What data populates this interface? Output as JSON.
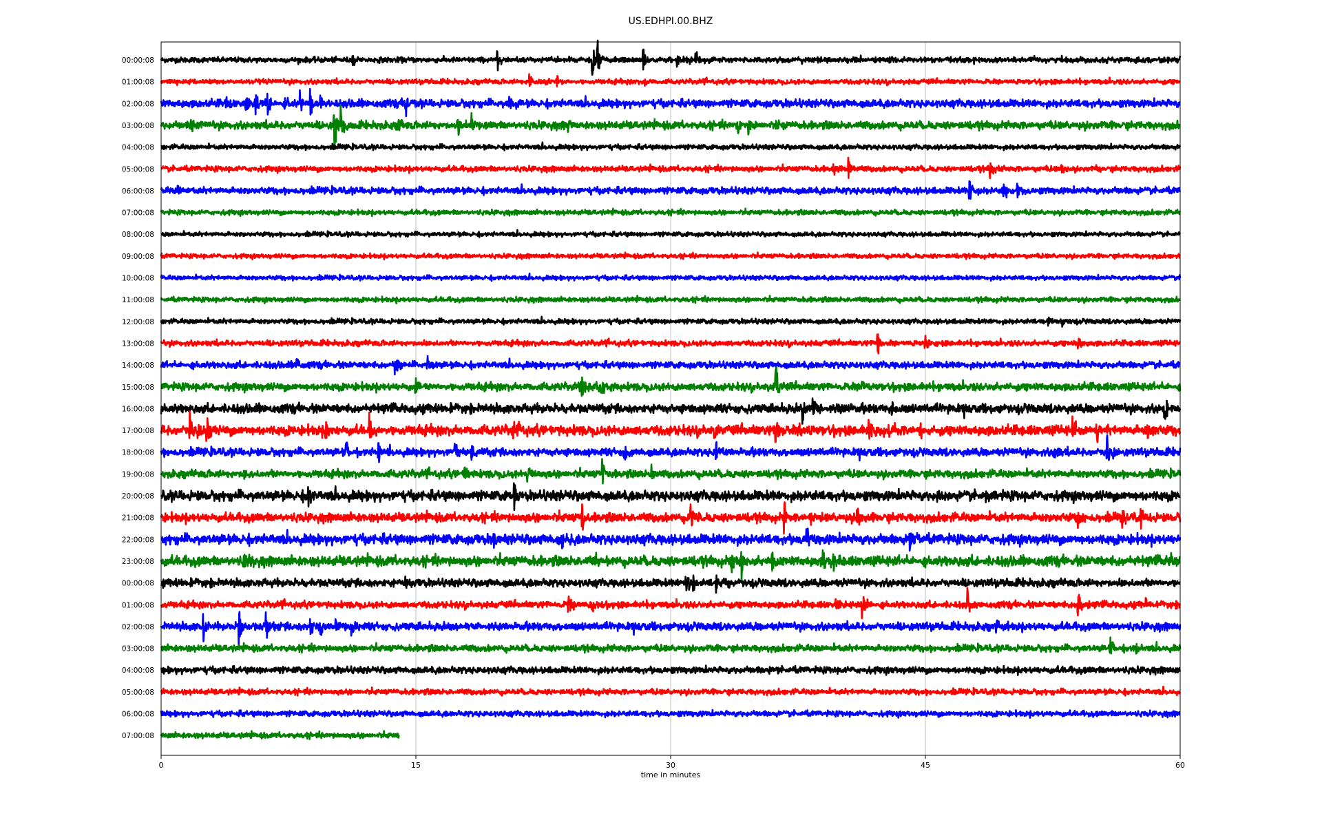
{
  "chart_data": {
    "type": "line",
    "title": "US.EDHPI.00.BHZ",
    "xlabel": "time in minutes",
    "ylabel": "",
    "xlim": [
      0,
      60
    ],
    "xticks": [
      0,
      15,
      30,
      45,
      60
    ],
    "grid": "vertical",
    "colors": [
      "#000000",
      "#ff0000",
      "#0000ff",
      "#008000"
    ],
    "row_labels": [
      "00:00:08",
      "01:00:08",
      "02:00:08",
      "03:00:08",
      "04:00:08",
      "05:00:08",
      "06:00:08",
      "07:00:08",
      "08:00:08",
      "09:00:08",
      "10:00:08",
      "11:00:08",
      "12:00:08",
      "13:00:08",
      "14:00:08",
      "15:00:08",
      "16:00:08",
      "17:00:08",
      "18:00:08",
      "19:00:08",
      "20:00:08",
      "21:00:08",
      "22:00:08",
      "23:00:08",
      "00:00:08",
      "01:00:08",
      "02:00:08",
      "03:00:08",
      "04:00:08",
      "05:00:08",
      "06:00:08",
      "07:00:08"
    ],
    "row_end_minutes": [
      60,
      60,
      60,
      60,
      60,
      60,
      60,
      60,
      60,
      60,
      60,
      60,
      60,
      60,
      60,
      60,
      60,
      60,
      60,
      60,
      60,
      60,
      60,
      60,
      60,
      60,
      60,
      60,
      60,
      60,
      60,
      14
    ],
    "noise_level": [
      0.25,
      0.22,
      0.35,
      0.35,
      0.22,
      0.25,
      0.3,
      0.22,
      0.2,
      0.2,
      0.2,
      0.22,
      0.22,
      0.25,
      0.3,
      0.35,
      0.4,
      0.45,
      0.35,
      0.35,
      0.45,
      0.4,
      0.45,
      0.45,
      0.35,
      0.3,
      0.35,
      0.3,
      0.3,
      0.25,
      0.25,
      0.25
    ],
    "events": [
      [
        [
          11.3,
          0.5
        ],
        [
          19.8,
          0.6
        ],
        [
          25.4,
          1.0
        ],
        [
          25.7,
          1.4
        ],
        [
          28.4,
          0.6
        ],
        [
          30.4,
          0.6
        ],
        [
          31.5,
          0.6
        ]
      ],
      [
        [
          21.7,
          0.5
        ],
        [
          22.6,
          0.5
        ],
        [
          23.3,
          0.4
        ],
        [
          28.5,
          0.3
        ]
      ],
      [
        [
          3.8,
          0.5
        ],
        [
          5.0,
          0.6
        ],
        [
          5.6,
          0.7
        ],
        [
          6.3,
          0.6
        ],
        [
          7.3,
          0.5
        ],
        [
          8.2,
          0.8
        ],
        [
          8.8,
          0.7
        ],
        [
          9.4,
          0.7
        ],
        [
          14.4,
          0.6
        ],
        [
          20.5,
          0.8
        ]
      ],
      [
        [
          1.8,
          0.7
        ],
        [
          10.2,
          1.6
        ],
        [
          10.6,
          1.0
        ],
        [
          14.0,
          0.7
        ],
        [
          17.5,
          0.6
        ],
        [
          18.3,
          0.6
        ],
        [
          24.0,
          0.4
        ],
        [
          34.0,
          0.6
        ],
        [
          34.6,
          0.5
        ],
        [
          36.2,
          0.4
        ]
      ],
      [],
      [
        [
          39.6,
          0.4
        ],
        [
          40.5,
          0.6
        ],
        [
          48.8,
          0.6
        ],
        [
          53.0,
          0.4
        ],
        [
          55.0,
          0.3
        ]
      ],
      [
        [
          1.0,
          0.3
        ],
        [
          47.6,
          0.6
        ],
        [
          49.6,
          0.5
        ],
        [
          50.4,
          0.4
        ]
      ],
      [],
      [],
      [],
      [],
      [],
      [
        [
          52.2,
          0.4
        ],
        [
          53.0,
          0.3
        ]
      ],
      [
        [
          42.2,
          0.7
        ],
        [
          45.0,
          0.5
        ],
        [
          54.0,
          0.5
        ]
      ],
      [
        [
          8.0,
          0.4
        ],
        [
          13.8,
          0.7
        ],
        [
          15.7,
          0.5
        ]
      ],
      [
        [
          15.0,
          0.5
        ],
        [
          24.8,
          0.6
        ],
        [
          25.9,
          0.7
        ],
        [
          36.2,
          1.5
        ],
        [
          41.3,
          0.3
        ]
      ],
      [
        [
          37.8,
          0.7
        ],
        [
          38.4,
          0.7
        ],
        [
          39.9,
          0.4
        ],
        [
          43.0,
          0.6
        ],
        [
          59.1,
          0.9
        ]
      ],
      [
        [
          1.7,
          0.9
        ],
        [
          2.7,
          1.0
        ],
        [
          9.7,
          0.6
        ],
        [
          12.3,
          0.8
        ],
        [
          20.7,
          0.4
        ],
        [
          32.6,
          0.5
        ],
        [
          36.2,
          1.2
        ],
        [
          37.6,
          0.6
        ],
        [
          41.7,
          0.7
        ],
        [
          42.9,
          0.7
        ],
        [
          44.7,
          0.6
        ],
        [
          53.7,
          0.9
        ],
        [
          55.1,
          0.5
        ],
        [
          58.1,
          0.6
        ]
      ],
      [
        [
          10.9,
          0.7
        ],
        [
          12.8,
          0.6
        ],
        [
          17.3,
          0.6
        ],
        [
          18.3,
          0.6
        ],
        [
          27.3,
          0.6
        ],
        [
          32.7,
          0.7
        ],
        [
          52.6,
          0.4
        ],
        [
          55.7,
          1.0
        ]
      ],
      [
        [
          4.9,
          0.4
        ],
        [
          17.9,
          0.5
        ],
        [
          21.6,
          0.6
        ],
        [
          26.0,
          0.7
        ],
        [
          28.9,
          0.7
        ]
      ],
      [
        [
          8.7,
          0.7
        ],
        [
          20.8,
          1.0
        ],
        [
          45.7,
          0.3
        ],
        [
          48.6,
          0.6
        ]
      ],
      [
        [
          24.8,
          0.8
        ],
        [
          31.2,
          0.9
        ],
        [
          36.7,
          1.1
        ],
        [
          38.2,
          0.6
        ],
        [
          41.0,
          0.7
        ],
        [
          54.0,
          0.6
        ],
        [
          56.6,
          0.5
        ],
        [
          57.7,
          0.7
        ]
      ],
      [
        [
          19.6,
          0.6
        ],
        [
          23.6,
          0.7
        ],
        [
          38.0,
          0.7
        ],
        [
          44.1,
          0.6
        ]
      ],
      [
        [
          4.9,
          0.4
        ],
        [
          25.6,
          0.3
        ],
        [
          33.6,
          0.8
        ],
        [
          34.2,
          0.9
        ],
        [
          36.0,
          0.6
        ],
        [
          39.0,
          0.6
        ],
        [
          39.6,
          0.6
        ],
        [
          59.5,
          0.4
        ]
      ],
      [
        [
          14.4,
          0.4
        ],
        [
          30.9,
          1.2
        ],
        [
          31.3,
          0.7
        ],
        [
          32.7,
          0.5
        ],
        [
          33.4,
          0.4
        ]
      ],
      [
        [
          24.0,
          0.5
        ],
        [
          25.4,
          0.4
        ],
        [
          39.7,
          0.7
        ],
        [
          41.3,
          0.9
        ],
        [
          47.5,
          0.9
        ],
        [
          54.0,
          0.8
        ],
        [
          58.0,
          0.5
        ]
      ],
      [
        [
          2.5,
          0.8
        ],
        [
          4.6,
          1.5
        ],
        [
          6.2,
          0.8
        ],
        [
          8.8,
          0.6
        ],
        [
          9.4,
          0.7
        ],
        [
          10.3,
          0.6
        ],
        [
          11.2,
          0.7
        ],
        [
          49.2,
          0.4
        ]
      ],
      [
        [
          55.9,
          0.9
        ],
        [
          57.2,
          0.5
        ]
      ],
      [
        [
          35.8,
          0.3
        ]
      ],
      [],
      [],
      []
    ]
  }
}
